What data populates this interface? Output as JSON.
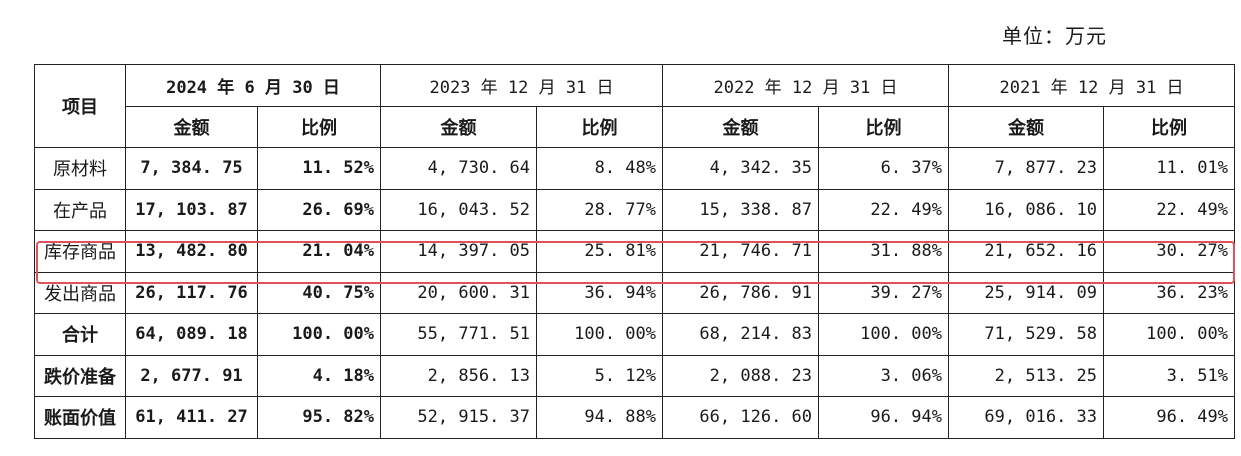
{
  "unit": "单位：万元",
  "headers": {
    "item": "项目",
    "periods": [
      "2024 年 6 月 30 日",
      "2023 年 12 月 31 日",
      "2022 年 12 月 31 日",
      "2021 年 12 月 31 日"
    ],
    "amount": "金额",
    "ratio": "比例"
  },
  "rows": [
    {
      "label": "原材料",
      "v": [
        "7, 384. 75",
        "11. 52%",
        "4, 730. 64",
        "8. 48%",
        "4, 342. 35",
        "6. 37%",
        "7, 877. 23",
        "11. 01%"
      ]
    },
    {
      "label": "在产品",
      "v": [
        "17, 103. 87",
        "26. 69%",
        "16, 043. 52",
        "28. 77%",
        "15, 338. 87",
        "22. 49%",
        "16, 086. 10",
        "22. 49%"
      ]
    },
    {
      "label": "库存商品",
      "v": [
        "13, 482. 80",
        "21. 04%",
        "14, 397. 05",
        "25. 81%",
        "21, 746. 71",
        "31. 88%",
        "21, 652. 16",
        "30. 27%"
      ]
    },
    {
      "label": "发出商品",
      "v": [
        "26, 117. 76",
        "40. 75%",
        "20, 600. 31",
        "36. 94%",
        "26, 786. 91",
        "39. 27%",
        "25, 914. 09",
        "36. 23%"
      ]
    },
    {
      "label": "合计",
      "v": [
        "64, 089. 18",
        "100. 00%",
        "55, 771. 51",
        "100. 00%",
        "68, 214. 83",
        "100. 00%",
        "71, 529. 58",
        "100. 00%"
      ]
    },
    {
      "label": "跌价准备",
      "v": [
        "2, 677. 91",
        "4. 18%",
        "2, 856. 13",
        "5. 12%",
        "2, 088. 23",
        "3. 06%",
        "2, 513. 25",
        "3. 51%"
      ]
    },
    {
      "label": "账面价值",
      "v": [
        "61, 411. 27",
        "95. 82%",
        "52, 915. 37",
        "94. 88%",
        "66, 126. 60",
        "96. 94%",
        "69, 016. 33",
        "96. 49%"
      ]
    }
  ],
  "highlight_color": "#e0525a"
}
